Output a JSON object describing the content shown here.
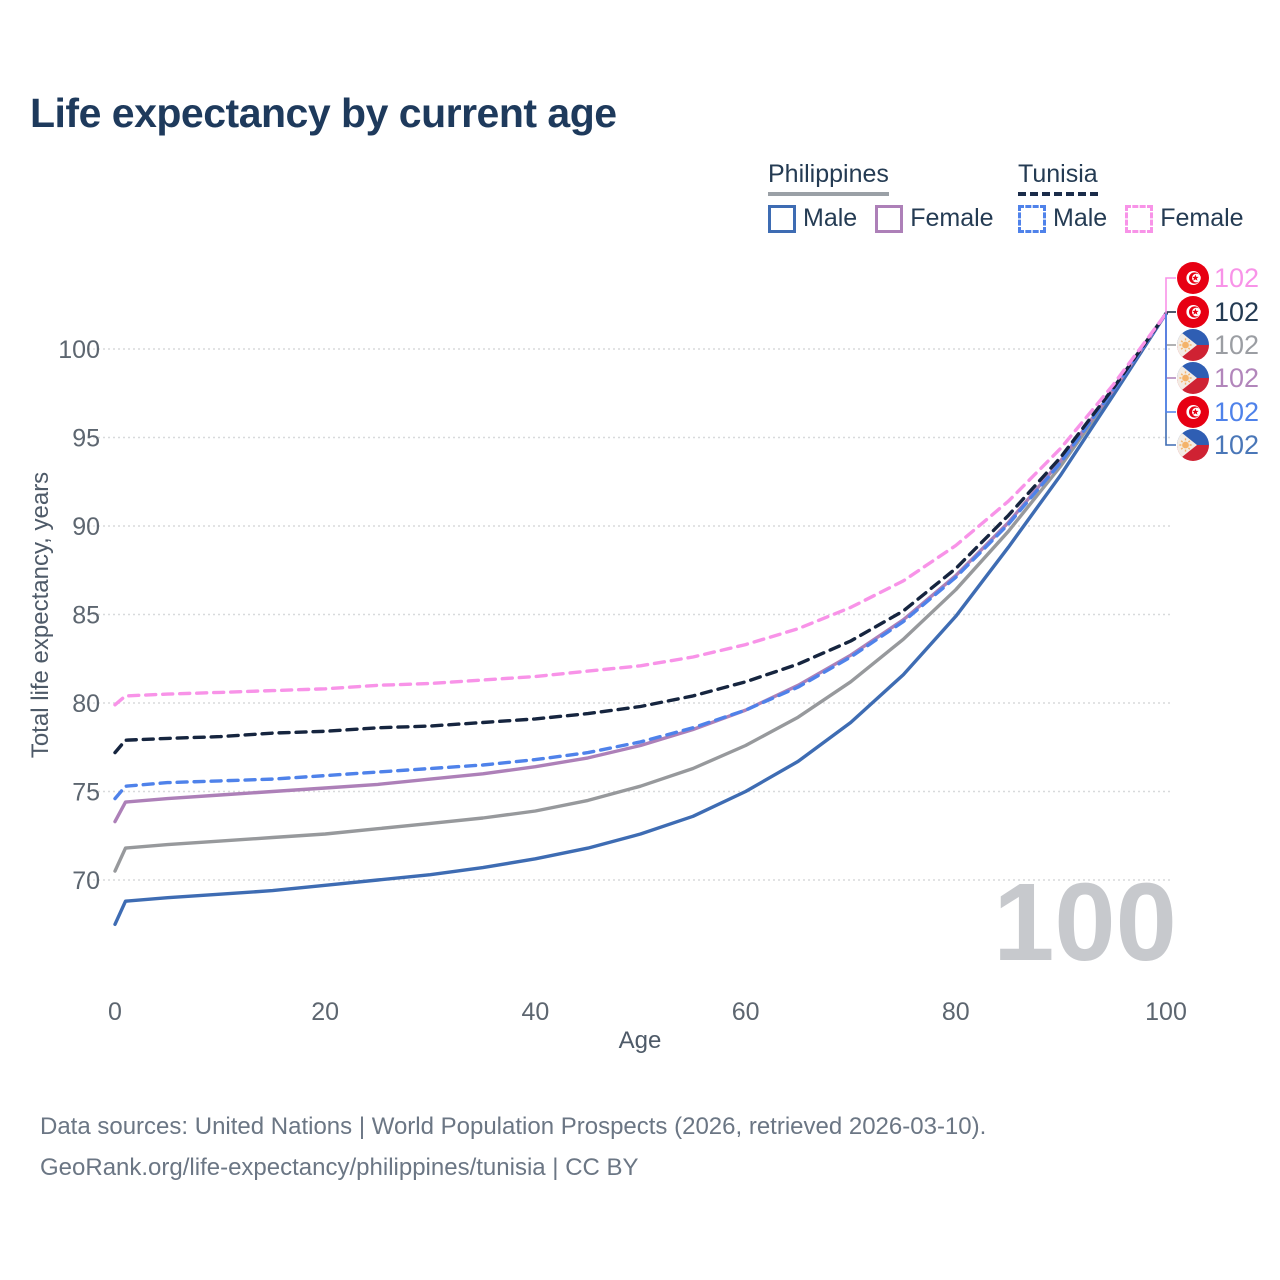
{
  "title": "Life expectancy by current age",
  "watermark": "100",
  "legend": {
    "groups": [
      {
        "name": "Philippines",
        "underline": {
          "style": "solid",
          "color": "#9aa0a6"
        },
        "items": [
          {
            "label": "Male",
            "color": "#3e6cb3",
            "dash": "solid"
          },
          {
            "label": "Female",
            "color": "#ad80b8",
            "dash": "solid"
          }
        ]
      },
      {
        "name": "Tunisia",
        "underline": {
          "style": "dashed",
          "color": "#1b2c4a"
        },
        "items": [
          {
            "label": "Male",
            "color": "#4f82ea",
            "dash": "dashed"
          },
          {
            "label": "Female",
            "color": "#f893e8",
            "dash": "dashed"
          }
        ]
      }
    ]
  },
  "footer": {
    "line1": "Data sources: United Nations | World Population Prospects (2026, retrieved 2026-03-10).",
    "line2": "GeoRank.org/life-expectancy/philippines/tunisia | CC BY"
  },
  "chart_data": {
    "type": "line",
    "title": "Life expectancy by current age",
    "xlabel": "Age",
    "ylabel": "Total life expectancy, years",
    "x_ticks": [
      "0",
      "20",
      "40",
      "60",
      "80",
      "100"
    ],
    "y_ticks": [
      "70",
      "75",
      "80",
      "85",
      "90",
      "95",
      "100"
    ],
    "xlim": [
      0,
      100
    ],
    "ylim": [
      67,
      103
    ],
    "grid": "horizontal-dotted",
    "legend_position": "top-right",
    "x": [
      0,
      1,
      5,
      10,
      15,
      20,
      25,
      30,
      35,
      40,
      45,
      50,
      55,
      60,
      65,
      70,
      75,
      80,
      85,
      90,
      95,
      100
    ],
    "series": [
      {
        "name": "Philippines (both sexes)",
        "country": "Philippines",
        "sex": "both",
        "color": "#97999c",
        "label_color": "#9b9ea3",
        "dash": "solid",
        "flag": "philippines",
        "end_label": "102",
        "label_row": 2,
        "values": [
          70.5,
          71.8,
          72.0,
          72.2,
          72.4,
          72.6,
          72.9,
          73.2,
          73.5,
          73.9,
          74.5,
          75.3,
          76.3,
          77.6,
          79.2,
          81.2,
          83.6,
          86.4,
          89.7,
          93.4,
          97.6,
          102
        ]
      },
      {
        "name": "Philippines Male",
        "country": "Philippines",
        "sex": "male",
        "color": "#3e6cb3",
        "label_color": "#4a77b8",
        "dash": "solid",
        "flag": "philippines",
        "end_label": "102",
        "label_row": 5,
        "values": [
          67.5,
          68.8,
          69.0,
          69.2,
          69.4,
          69.7,
          70.0,
          70.3,
          70.7,
          71.2,
          71.8,
          72.6,
          73.6,
          75.0,
          76.7,
          78.9,
          81.6,
          84.9,
          88.8,
          92.9,
          97.4,
          102
        ]
      },
      {
        "name": "Philippines Female",
        "country": "Philippines",
        "sex": "female",
        "color": "#ad80b8",
        "label_color": "#b286bb",
        "dash": "solid",
        "flag": "philippines",
        "end_label": "102",
        "label_row": 3,
        "values": [
          73.3,
          74.4,
          74.6,
          74.8,
          75.0,
          75.2,
          75.4,
          75.7,
          76.0,
          76.4,
          76.9,
          77.6,
          78.5,
          79.6,
          81.0,
          82.7,
          84.7,
          87.2,
          90.2,
          93.7,
          97.7,
          102
        ]
      },
      {
        "name": "Tunisia Male",
        "country": "Tunisia",
        "sex": "male",
        "color": "#4f82ea",
        "label_color": "#4f82ea",
        "dash": "dashed",
        "flag": "tunisia",
        "end_label": "102",
        "label_row": 4,
        "values": [
          74.6,
          75.3,
          75.5,
          75.6,
          75.7,
          75.9,
          76.1,
          76.3,
          76.5,
          76.8,
          77.2,
          77.8,
          78.6,
          79.6,
          80.9,
          82.6,
          84.6,
          87.1,
          90.1,
          93.6,
          97.7,
          102
        ]
      },
      {
        "name": "Tunisia (both sexes)",
        "country": "Tunisia",
        "sex": "both",
        "color": "#16253f",
        "label_color": "#243b53",
        "dash": "dashed",
        "flag": "tunisia",
        "end_label": "102",
        "label_row": 1,
        "values": [
          77.2,
          77.9,
          78.0,
          78.1,
          78.3,
          78.4,
          78.6,
          78.7,
          78.9,
          79.1,
          79.4,
          79.8,
          80.4,
          81.2,
          82.2,
          83.5,
          85.2,
          87.6,
          90.6,
          93.9,
          97.8,
          102
        ]
      },
      {
        "name": "Tunisia Female",
        "country": "Tunisia",
        "sex": "female",
        "color": "#f893e8",
        "label_color": "#f893e8",
        "dash": "dashed",
        "flag": "tunisia",
        "end_label": "102",
        "label_row": 0,
        "values": [
          79.9,
          80.4,
          80.5,
          80.6,
          80.7,
          80.8,
          81.0,
          81.1,
          81.3,
          81.5,
          81.8,
          82.1,
          82.6,
          83.3,
          84.2,
          85.4,
          86.9,
          88.9,
          91.4,
          94.4,
          98.0,
          102
        ]
      }
    ]
  }
}
